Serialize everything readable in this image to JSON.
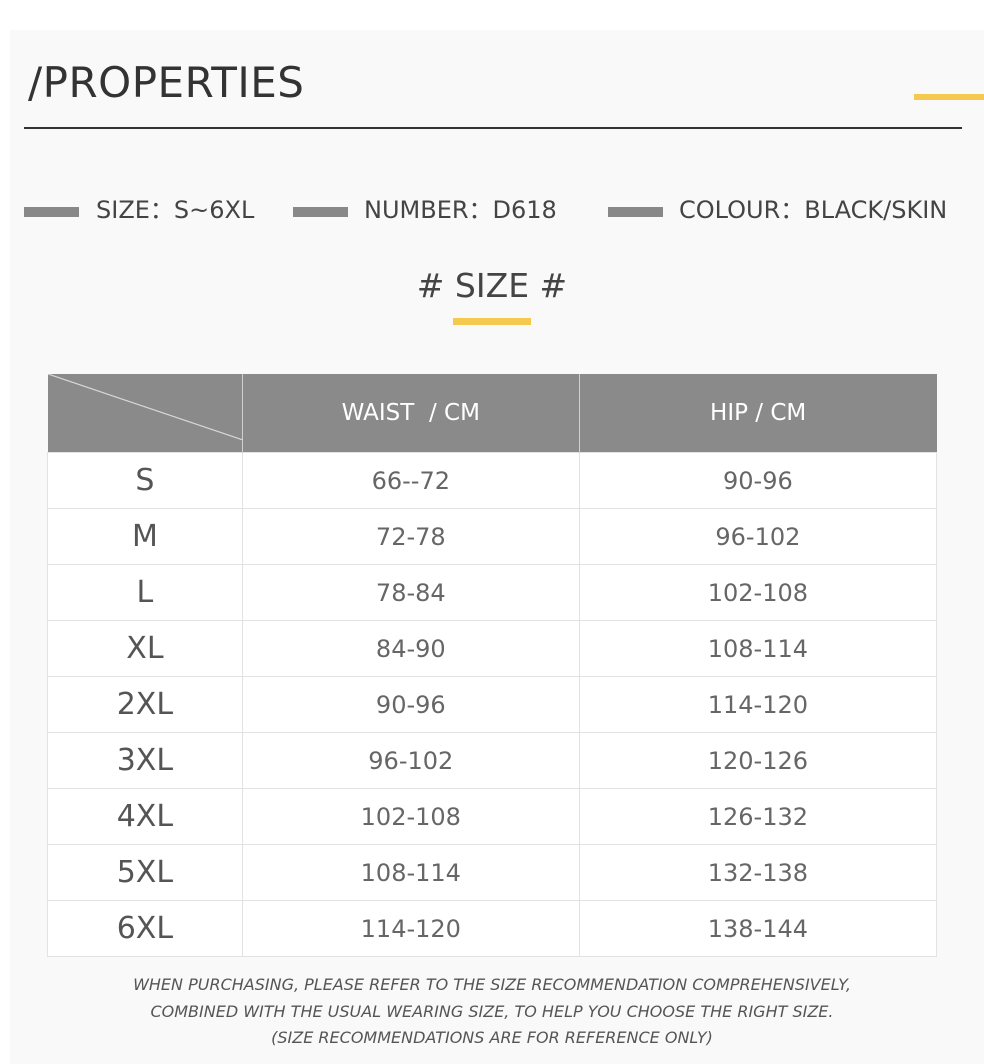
{
  "header": {
    "title": "/PROPERTIES"
  },
  "properties": [
    "SIZE：S~6XL",
    "NUMBER：D618",
    "COLOUR：BLACK/SKIN"
  ],
  "size_heading": "# SIZE #",
  "table": {
    "columns": [
      "WAIST  / CM",
      "HIP / CM"
    ],
    "rows": [
      [
        "S",
        "66--72",
        "90-96"
      ],
      [
        "M",
        "72-78",
        "96-102"
      ],
      [
        "L",
        "78-84",
        "102-108"
      ],
      [
        "XL",
        "84-90",
        "108-114"
      ],
      [
        "2XL",
        "90-96",
        "114-120"
      ],
      [
        "3XL",
        "96-102",
        "120-126"
      ],
      [
        "4XL",
        "102-108",
        "126-132"
      ],
      [
        "5XL",
        "108-114",
        "132-138"
      ],
      [
        "6XL",
        "114-120",
        "138-144"
      ]
    ]
  },
  "notes": [
    "WHEN PURCHASING, PLEASE REFER TO THE SIZE RECOMMENDATION COMPREHENSIVELY,",
    "COMBINED WITH THE USUAL WEARING SIZE, TO HELP YOU CHOOSE THE RIGHT SIZE.",
    "(SIZE RECOMMENDATIONS ARE FOR REFERENCE ONLY)"
  ]
}
